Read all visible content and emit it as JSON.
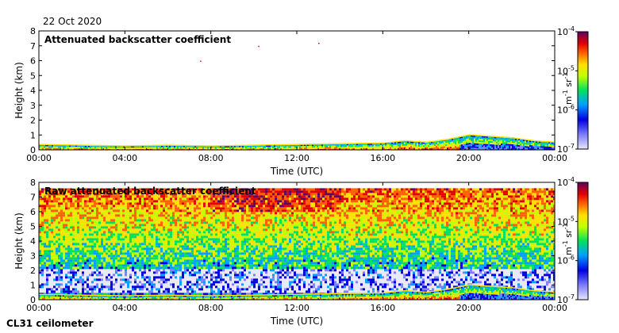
{
  "date": "22 Oct 2020",
  "instrument": "CL31 ceilometer",
  "chart_data": [
    {
      "type": "heatmap",
      "title": "Attenuated backscatter coefficient",
      "xlabel": "Time (UTC)",
      "ylabel": "Height (km)",
      "xticks": [
        "00:00",
        "04:00",
        "08:00",
        "12:00",
        "16:00",
        "20:00",
        "00:00"
      ],
      "xlim_hours": [
        0,
        24
      ],
      "ylim": [
        0,
        8
      ],
      "yticks": [
        0,
        1,
        2,
        3,
        4,
        5,
        6,
        7,
        8
      ],
      "colorbar": {
        "scale": "log",
        "range": [
          1e-07,
          0.0001
        ],
        "ticks": [
          "10",
          "10",
          "10",
          "10"
        ],
        "tick_exponents": [
          "-7",
          "-6",
          "-5",
          "-4"
        ],
        "units": "m",
        "units_exp1": "-1",
        "units_mid": " sr",
        "units_exp2": "-1"
      },
      "boundary_layer_top_km": [
        [
          0,
          0.35
        ],
        [
          2,
          0.3
        ],
        [
          4,
          0.25
        ],
        [
          6,
          0.3
        ],
        [
          8,
          0.25
        ],
        [
          10,
          0.3
        ],
        [
          12,
          0.35
        ],
        [
          14,
          0.4
        ],
        [
          16,
          0.45
        ],
        [
          17,
          0.6
        ],
        [
          18,
          0.5
        ],
        [
          19,
          0.7
        ],
        [
          20,
          1.0
        ],
        [
          21,
          0.9
        ],
        [
          22,
          0.8
        ],
        [
          23,
          0.6
        ],
        [
          24,
          0.5
        ]
      ],
      "isolated_points_km": [
        [
          7.5,
          6.0
        ],
        [
          10.2,
          7.0
        ],
        [
          13.0,
          7.2
        ]
      ]
    },
    {
      "type": "heatmap",
      "title": "Raw attenuated backscatter coefficient",
      "xlabel": "Time (UTC)",
      "ylabel": "Height (km)",
      "xticks": [
        "00:00",
        "04:00",
        "08:00",
        "12:00",
        "16:00",
        "20:00",
        "00:00"
      ],
      "xlim_hours": [
        0,
        24
      ],
      "ylim": [
        0,
        8
      ],
      "yticks": [
        0,
        1,
        2,
        3,
        4,
        5,
        6,
        7,
        8
      ],
      "colorbar": {
        "scale": "log",
        "range": [
          1e-07,
          0.0001
        ],
        "ticks": [
          "10",
          "10",
          "10",
          "10"
        ],
        "tick_exponents": [
          "-7",
          "-6",
          "-5",
          "-4"
        ],
        "units": "m",
        "units_exp1": "-1",
        "units_mid": " sr",
        "units_exp2": "-1"
      },
      "boundary_layer_top_km": [
        [
          0,
          0.35
        ],
        [
          2,
          0.3
        ],
        [
          4,
          0.25
        ],
        [
          6,
          0.3
        ],
        [
          8,
          0.25
        ],
        [
          10,
          0.3
        ],
        [
          12,
          0.35
        ],
        [
          14,
          0.4
        ],
        [
          16,
          0.45
        ],
        [
          17,
          0.6
        ],
        [
          18,
          0.5
        ],
        [
          19,
          0.7
        ],
        [
          20,
          1.0
        ],
        [
          21,
          0.9
        ],
        [
          22,
          0.8
        ],
        [
          23,
          0.6
        ],
        [
          24,
          0.5
        ]
      ],
      "noise_top_km": 7.6
    }
  ]
}
